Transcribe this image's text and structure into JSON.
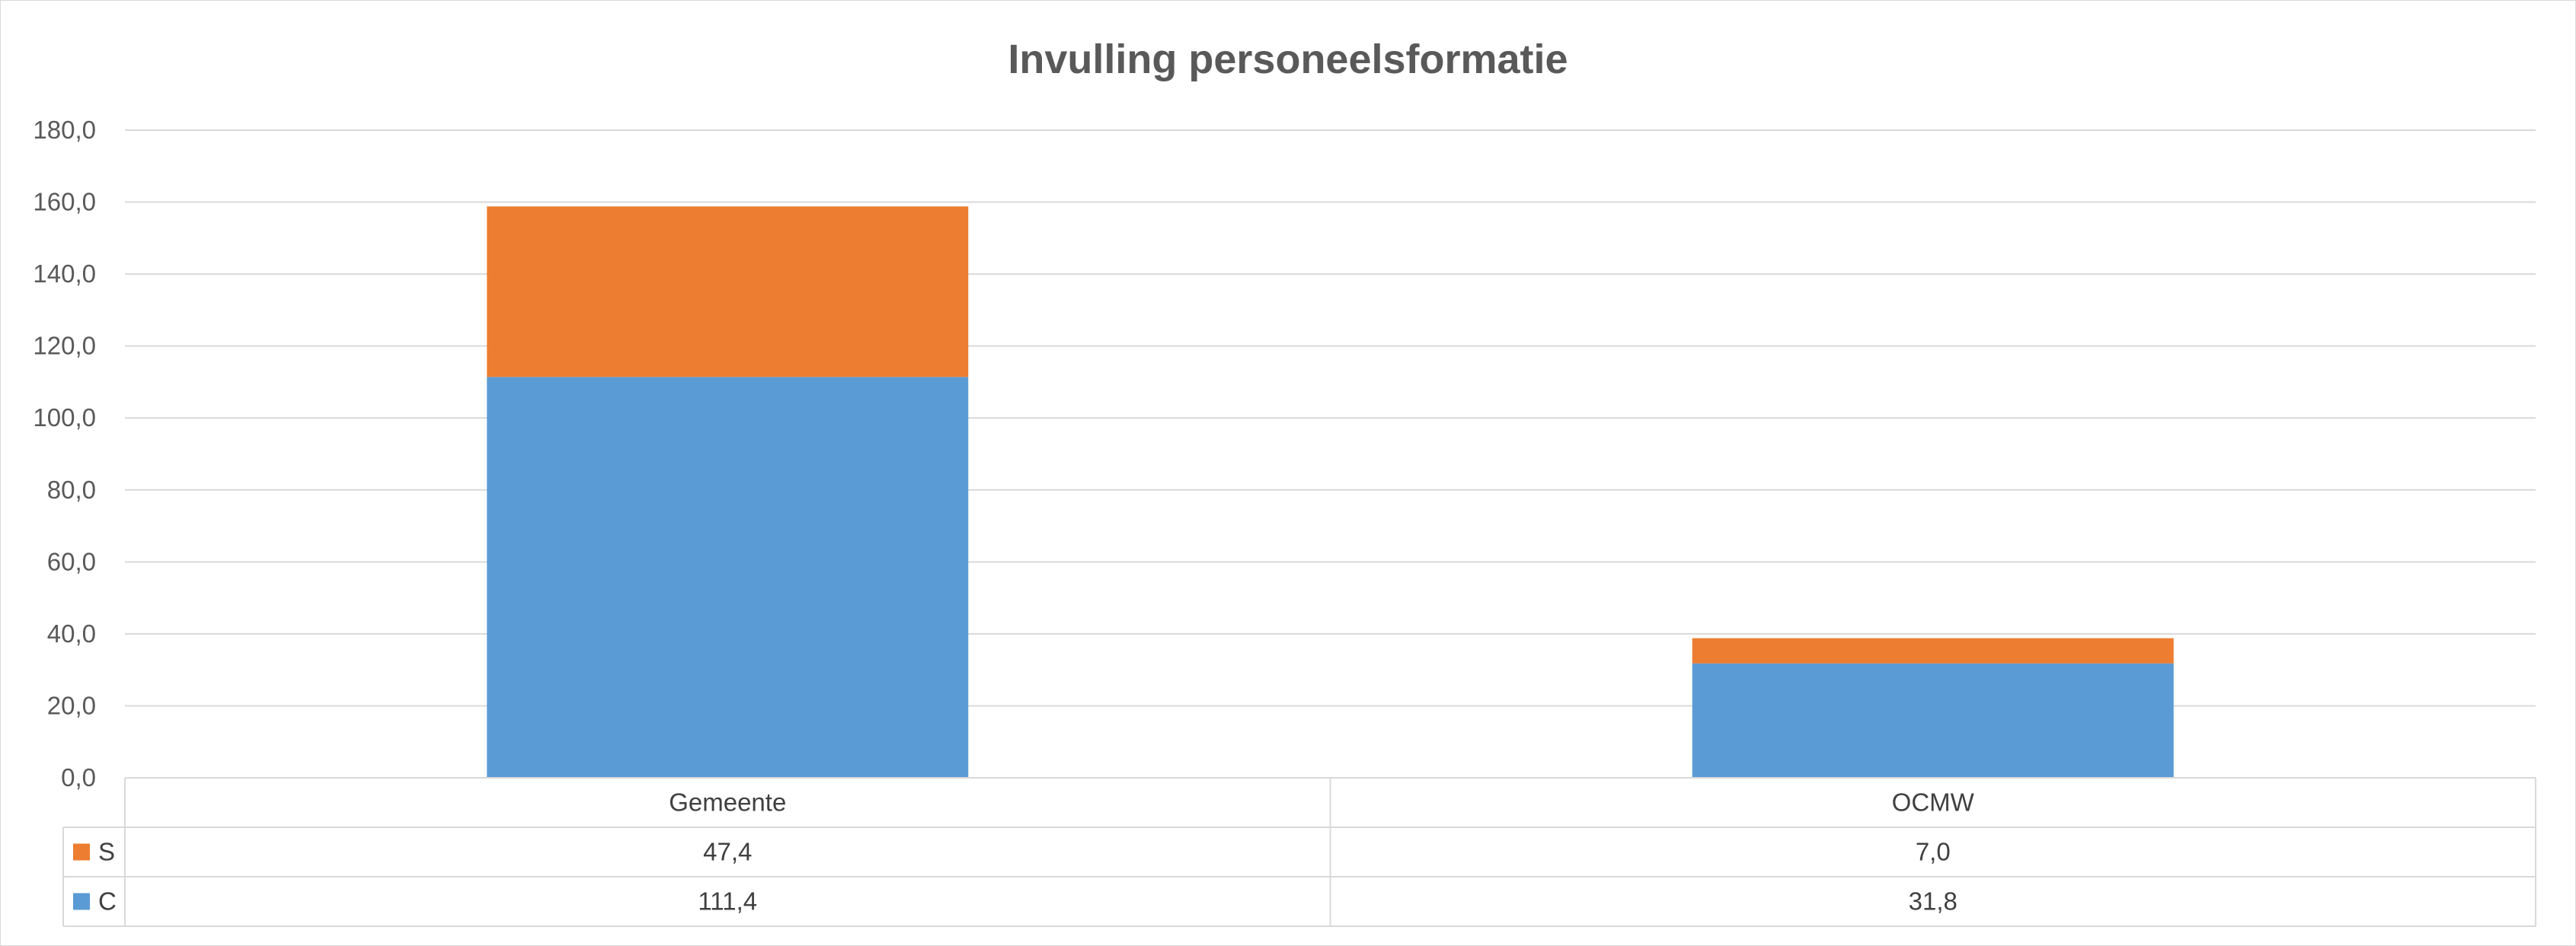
{
  "chart_data": {
    "type": "bar",
    "stacked": true,
    "title": "Invulling personeelsformatie",
    "categories": [
      "Gemeente",
      "OCMW"
    ],
    "series": [
      {
        "name": "C",
        "color": "#5b9bd5",
        "values": [
          111.4,
          31.8
        ],
        "labels": [
          "111,4",
          "31,8"
        ]
      },
      {
        "name": "S",
        "color": "#ed7d31",
        "values": [
          47.4,
          7.0
        ],
        "labels": [
          "47,4",
          "7,0"
        ]
      }
    ],
    "ylim": [
      0,
      180
    ],
    "yticks": [
      0,
      20,
      40,
      60,
      80,
      100,
      120,
      140,
      160,
      180
    ],
    "ytick_labels": [
      "0,0",
      "20,0",
      "40,0",
      "60,0",
      "80,0",
      "100,0",
      "120,0",
      "140,0",
      "160,0",
      "180,0"
    ],
    "grid": true,
    "legend": "data-table",
    "xlabel": "",
    "ylabel": ""
  }
}
